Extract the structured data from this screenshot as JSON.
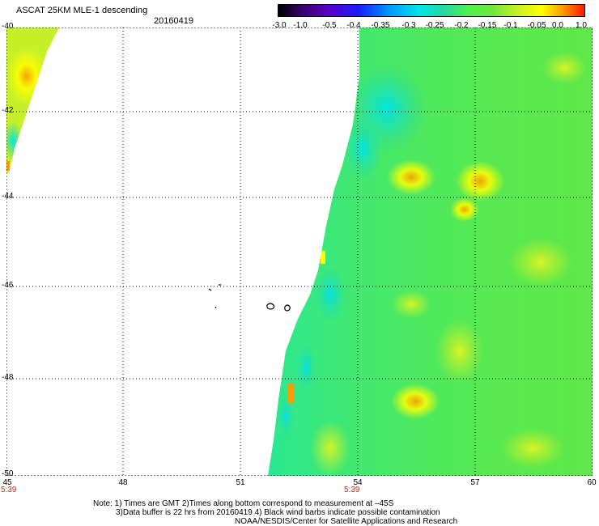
{
  "title": "ASCAT 25KM MLE-1 descending",
  "date": "20160419",
  "colorbar": {
    "ticks": [
      "-3.0",
      "-1.0",
      "-0.5",
      "-0.4",
      "-0.35",
      "-0.3",
      "-0.25",
      "-0.2",
      "-0.15",
      "-0.1",
      "-0.05",
      "0.0",
      "1.0"
    ]
  },
  "axes": {
    "x_labels": [
      "45",
      "48",
      "51",
      "54",
      "57",
      "60"
    ],
    "y_labels": [
      "-40",
      "-42",
      "-44",
      "-46",
      "-48",
      "-50"
    ]
  },
  "times": [
    "5:39",
    "5:39"
  ],
  "notes": [
    "Note: 1) Times are GMT 2)Times along bottom correspond to measurement at –45S",
    "3)Data buffer is 22 hrs from 20160419 4) Black wind barbs indicate possible contamination",
    "NOAA/NESDIS/Center for Satellite Applications and Research"
  ],
  "colors": {
    "swath_green": "#4ef04e",
    "swath_yellow": "#ffff00",
    "swath_cyan": "#00e6e6",
    "swath_orange": "#ff9a00",
    "grid": "#000000"
  }
}
